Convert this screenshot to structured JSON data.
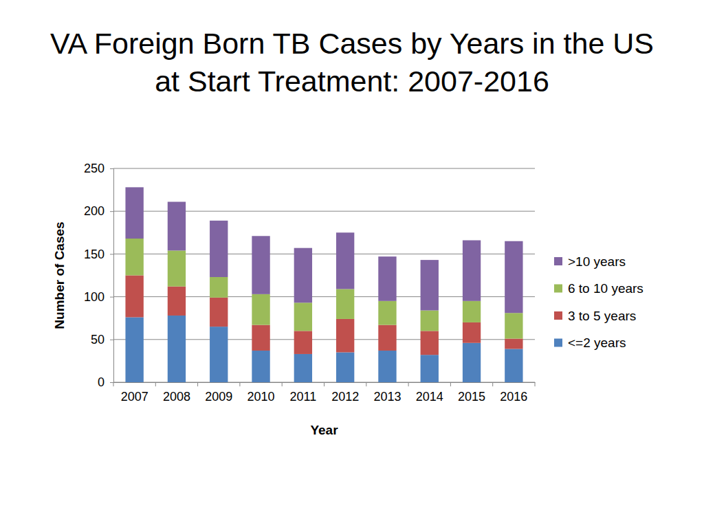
{
  "chart_data": {
    "type": "bar",
    "stacked": true,
    "title": "VA Foreign Born TB Cases by Years in the US at Start Treatment:  2007-2016",
    "x_label": "Year",
    "y_label": "Number of Cases",
    "categories": [
      "2007",
      "2008",
      "2009",
      "2010",
      "2011",
      "2012",
      "2013",
      "2014",
      "2015",
      "2016"
    ],
    "series": [
      {
        "name": "<=2 years",
        "color": "#4f81bd",
        "values": [
          76,
          78,
          65,
          37,
          33,
          35,
          37,
          32,
          46,
          39
        ]
      },
      {
        "name": "3 to 5 years",
        "color": "#c0504d",
        "values": [
          49,
          34,
          34,
          30,
          27,
          39,
          30,
          28,
          24,
          12
        ]
      },
      {
        "name": "6 to 10 years",
        "color": "#9bbb59",
        "values": [
          43,
          42,
          24,
          36,
          33,
          35,
          28,
          24,
          25,
          30
        ]
      },
      {
        "name": ">10 years",
        "color": "#8064a2",
        "values": [
          60,
          57,
          66,
          68,
          64,
          66,
          52,
          59,
          71,
          84
        ]
      }
    ],
    "ylim": [
      0,
      250
    ],
    "yticks": [
      0,
      50,
      100,
      150,
      200,
      250
    ],
    "grid": true,
    "legend": "right"
  }
}
